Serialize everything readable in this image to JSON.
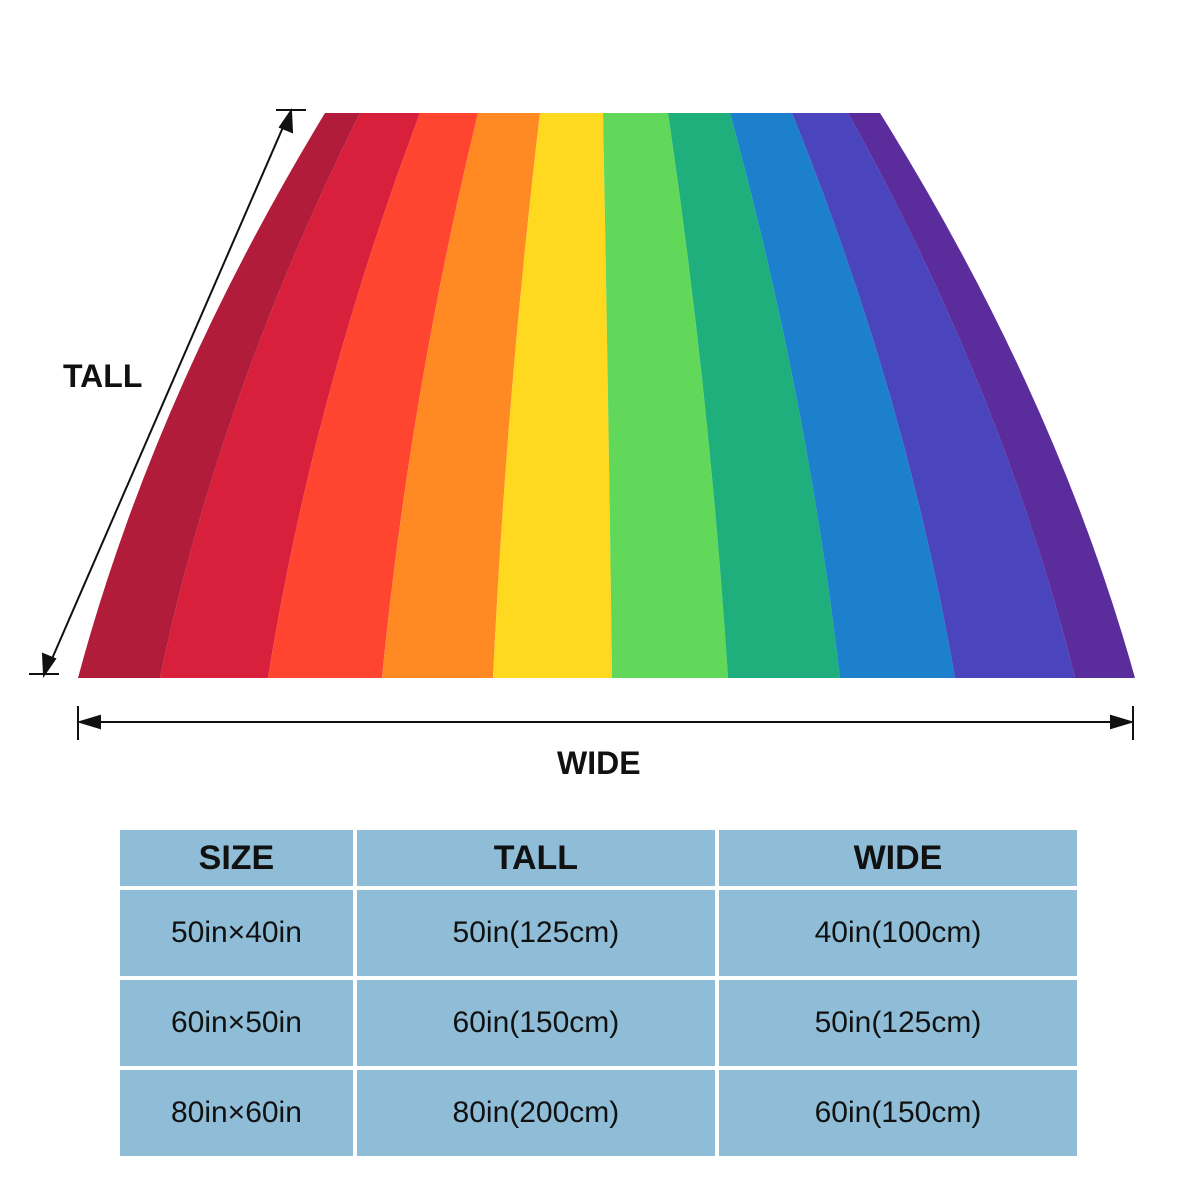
{
  "labels": {
    "tall": "TALL",
    "wide": "WIDE"
  },
  "table": {
    "header": [
      "SIZE",
      "TALL",
      "WIDE"
    ],
    "rows": [
      [
        "50in×40in",
        "50in(125cm)",
        "40in(100cm)"
      ],
      [
        "60in×50in",
        "60in(150cm)",
        "50in(125cm)"
      ],
      [
        "80in×60in",
        "80in(200cm)",
        "60in(150cm)"
      ]
    ]
  }
}
